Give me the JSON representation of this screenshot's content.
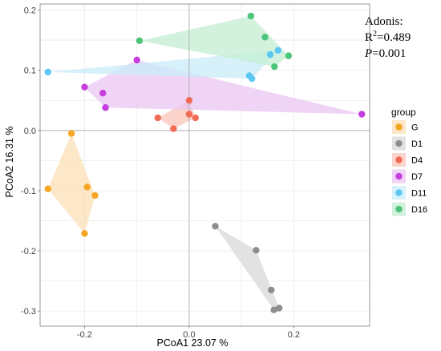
{
  "chart_data": {
    "type": "scatter",
    "xlabel": "PCoA1  23.07 %",
    "ylabel": "PCoA2  16.31 %",
    "xlim": [
      -0.285,
      0.345
    ],
    "ylim": [
      -0.325,
      0.21
    ],
    "x_ticks": [
      -0.2,
      -0.1,
      0.0,
      0.1,
      0.2
    ],
    "x_tick_labels": [
      "-0.2",
      "0.0",
      "0.2"
    ],
    "x_tick_label_values": [
      -0.2,
      0.0,
      0.2
    ],
    "y_ticks": [
      -0.3,
      -0.25,
      -0.2,
      -0.15,
      -0.1,
      -0.05,
      0.0,
      0.05,
      0.1,
      0.15,
      0.2
    ],
    "y_tick_labels": [
      "-0.3",
      "-0.2",
      "-0.1",
      "0.0",
      "0.1",
      "0.2"
    ],
    "y_tick_label_values": [
      -0.3,
      -0.2,
      -0.1,
      0.0,
      0.1,
      0.2
    ],
    "reference_lines": {
      "x": 0,
      "y": 0
    },
    "grid": true,
    "legend": {
      "title": "group",
      "placement": "right",
      "entries": [
        "G",
        "D1",
        "D4",
        "D7",
        "D11",
        "D16"
      ]
    },
    "series": [
      {
        "name": "G",
        "color": "#F5A623",
        "fill": "#FBE0B6",
        "hull": [
          [
            -0.225,
            -0.005
          ],
          [
            -0.18,
            -0.108
          ],
          [
            -0.2,
            -0.171
          ],
          [
            -0.27,
            -0.097
          ]
        ],
        "points": [
          [
            -0.225,
            -0.005
          ],
          [
            -0.27,
            -0.097
          ],
          [
            -0.195,
            -0.094
          ],
          [
            -0.18,
            -0.108
          ],
          [
            -0.2,
            -0.171
          ]
        ]
      },
      {
        "name": "D1",
        "color": "#8E8E8E",
        "fill": "#D8D8D8",
        "hull": [
          [
            0.05,
            -0.159
          ],
          [
            0.128,
            -0.199
          ],
          [
            0.172,
            -0.295
          ],
          [
            0.162,
            -0.298
          ]
        ],
        "points": [
          [
            0.05,
            -0.159
          ],
          [
            0.128,
            -0.199
          ],
          [
            0.157,
            -0.265
          ],
          [
            0.162,
            -0.298
          ],
          [
            0.172,
            -0.295
          ]
        ]
      },
      {
        "name": "D4",
        "color": "#F26B55",
        "fill": "#F9C4BA",
        "hull": [
          [
            -0.06,
            0.021
          ],
          [
            0.0,
            0.05
          ],
          [
            0.012,
            0.021
          ],
          [
            -0.03,
            0.003
          ]
        ],
        "points": [
          [
            -0.06,
            0.021
          ],
          [
            -0.03,
            0.003
          ],
          [
            0.0,
            0.05
          ],
          [
            0.0,
            0.027
          ],
          [
            0.012,
            0.021
          ]
        ]
      },
      {
        "name": "D7",
        "color": "#C43FDD",
        "fill": "#EBC6F3",
        "hull": [
          [
            -0.1,
            0.117
          ],
          [
            0.33,
            0.027
          ],
          [
            -0.16,
            0.038
          ],
          [
            -0.2,
            0.072
          ]
        ],
        "points": [
          [
            -0.1,
            0.117
          ],
          [
            -0.2,
            0.072
          ],
          [
            -0.165,
            0.062
          ],
          [
            -0.16,
            0.038
          ],
          [
            0.33,
            0.027
          ]
        ]
      },
      {
        "name": "D11",
        "color": "#5CC8F2",
        "fill": "#C9ECFA",
        "hull": [
          [
            -0.27,
            0.097
          ],
          [
            0.17,
            0.133
          ],
          [
            0.12,
            0.086
          ]
        ],
        "points": [
          [
            -0.27,
            0.097
          ],
          [
            0.155,
            0.126
          ],
          [
            0.17,
            0.133
          ],
          [
            0.115,
            0.091
          ],
          [
            0.12,
            0.086
          ]
        ]
      },
      {
        "name": "D16",
        "color": "#4CC47A",
        "fill": "#C4EDD3",
        "hull": [
          [
            -0.095,
            0.149
          ],
          [
            0.118,
            0.19
          ],
          [
            0.19,
            0.124
          ],
          [
            0.163,
            0.106
          ]
        ],
        "points": [
          [
            -0.095,
            0.149
          ],
          [
            0.118,
            0.19
          ],
          [
            0.145,
            0.155
          ],
          [
            0.19,
            0.124
          ],
          [
            0.163,
            0.106
          ]
        ]
      }
    ],
    "annotation": {
      "line1": "Adonis:",
      "line2_prefix": "R",
      "line2_sup": "2",
      "line2_value": "=0.489",
      "line3_var": "P",
      "line3_value": "=0.001"
    }
  }
}
